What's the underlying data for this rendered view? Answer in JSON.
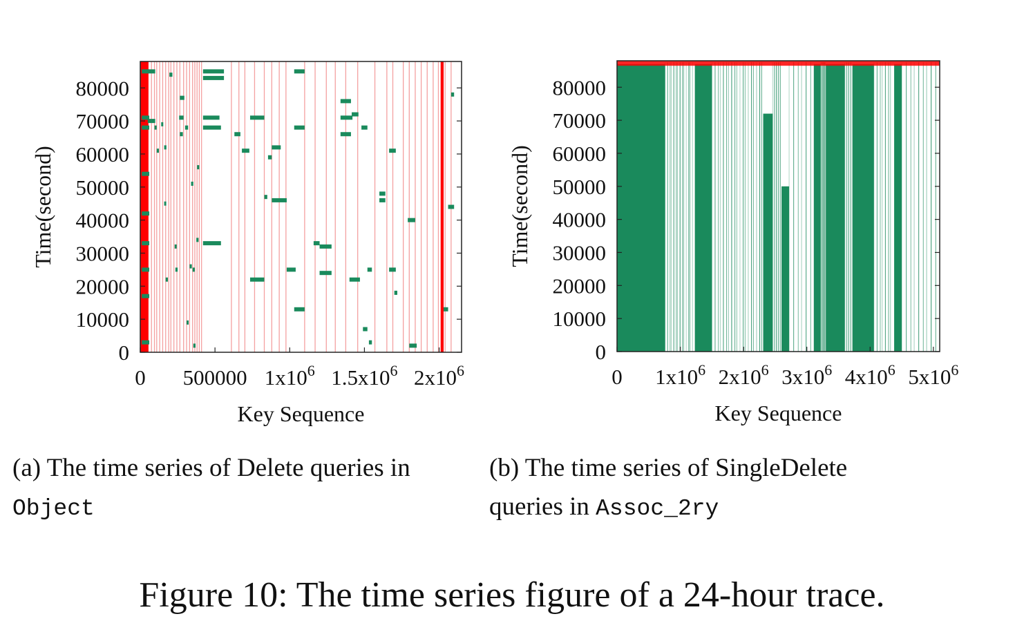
{
  "figure_caption": "Figure 10: The time series figure of a 24-hour trace.",
  "colors": {
    "red": "#ff0000",
    "light_red": "#f4a0a0",
    "green": "#1a8a5c",
    "axis": "#222222"
  },
  "chart_data": [
    {
      "id": "a",
      "type": "scatter",
      "caption_prefix": "(a)",
      "caption_text": "The time series of Delete queries in",
      "caption_mono": "Object",
      "xlabel": "Key Sequence",
      "ylabel": "Time(second)",
      "xlim": [
        0,
        2150000
      ],
      "ylim": [
        0,
        88000
      ],
      "xticks": [
        {
          "v": 0,
          "base": "0",
          "exp": ""
        },
        {
          "v": 500000,
          "base": "500000",
          "exp": ""
        },
        {
          "v": 1000000,
          "base": "1x10",
          "exp": "6"
        },
        {
          "v": 1500000,
          "base": "1.5x10",
          "exp": "6"
        },
        {
          "v": 2000000,
          "base": "2x10",
          "exp": "6"
        }
      ],
      "yticks": [
        0,
        10000,
        20000,
        30000,
        40000,
        50000,
        60000,
        70000,
        80000
      ],
      "red_bands": [
        [
          0,
          55000
        ],
        [
          2010000,
          2030000
        ]
      ],
      "red_lines": [
        75000,
        95000,
        110000,
        130000,
        150000,
        170000,
        190000,
        205000,
        225000,
        245000,
        265000,
        290000,
        310000,
        330000,
        350000,
        365000,
        380000,
        395000,
        410000,
        610000,
        660000,
        700000,
        765000,
        830000,
        880000,
        930000,
        975000,
        1100000,
        1170000,
        1245000,
        1305000,
        1375000,
        1455000,
        1570000,
        1650000,
        1690000,
        1760000,
        1800000,
        1840000,
        1880000,
        1920000,
        1960000,
        1995000,
        2040000,
        2080000
      ],
      "green_segments": [
        [
          10000,
          60000,
          85000
        ],
        [
          10000,
          60000,
          71000
        ],
        [
          10000,
          60000,
          68000
        ],
        [
          10000,
          60000,
          54000
        ],
        [
          10000,
          60000,
          42000
        ],
        [
          10000,
          60000,
          33000
        ],
        [
          10000,
          60000,
          25000
        ],
        [
          10000,
          60000,
          17000
        ],
        [
          10000,
          60000,
          3000
        ],
        [
          50000,
          100000,
          85000
        ],
        [
          50000,
          100000,
          70000
        ],
        [
          95000,
          110000,
          68000
        ],
        [
          110000,
          125000,
          61000
        ],
        [
          140000,
          150000,
          69000
        ],
        [
          160000,
          175000,
          62000
        ],
        [
          160000,
          170000,
          45000
        ],
        [
          170000,
          185000,
          22000
        ],
        [
          195000,
          215000,
          84000
        ],
        [
          230000,
          240000,
          32000
        ],
        [
          235000,
          250000,
          25000
        ],
        [
          265000,
          295000,
          77000
        ],
        [
          260000,
          290000,
          71000
        ],
        [
          265000,
          285000,
          66000
        ],
        [
          300000,
          320000,
          68000
        ],
        [
          310000,
          320000,
          9000
        ],
        [
          330000,
          345000,
          26000
        ],
        [
          340000,
          355000,
          51000
        ],
        [
          350000,
          365000,
          25000
        ],
        [
          355000,
          370000,
          2000
        ],
        [
          375000,
          390000,
          34000
        ],
        [
          380000,
          395000,
          56000
        ],
        [
          420000,
          560000,
          85000
        ],
        [
          420000,
          560000,
          83000
        ],
        [
          420000,
          530000,
          71000
        ],
        [
          420000,
          540000,
          68000
        ],
        [
          420000,
          540000,
          33000
        ],
        [
          630000,
          670000,
          66000
        ],
        [
          680000,
          730000,
          61000
        ],
        [
          735000,
          830000,
          71000
        ],
        [
          735000,
          830000,
          22000
        ],
        [
          830000,
          850000,
          47000
        ],
        [
          855000,
          880000,
          59000
        ],
        [
          880000,
          940000,
          62000
        ],
        [
          880000,
          980000,
          46000
        ],
        [
          980000,
          1040000,
          25000
        ],
        [
          1030000,
          1100000,
          85000
        ],
        [
          1030000,
          1100000,
          68000
        ],
        [
          1030000,
          1100000,
          13000
        ],
        [
          1160000,
          1200000,
          33000
        ],
        [
          1200000,
          1280000,
          32000
        ],
        [
          1200000,
          1280000,
          24000
        ],
        [
          1340000,
          1410000,
          76000
        ],
        [
          1340000,
          1420000,
          71000
        ],
        [
          1340000,
          1410000,
          66000
        ],
        [
          1415000,
          1460000,
          72000
        ],
        [
          1400000,
          1470000,
          22000
        ],
        [
          1480000,
          1520000,
          68000
        ],
        [
          1490000,
          1520000,
          7000
        ],
        [
          1520000,
          1550000,
          25000
        ],
        [
          1530000,
          1550000,
          3000
        ],
        [
          1600000,
          1640000,
          48000
        ],
        [
          1600000,
          1640000,
          46000
        ],
        [
          1665000,
          1710000,
          61000
        ],
        [
          1665000,
          1710000,
          25000
        ],
        [
          1700000,
          1720000,
          18000
        ],
        [
          1790000,
          1840000,
          40000
        ],
        [
          1800000,
          1850000,
          2000
        ],
        [
          2060000,
          2100000,
          44000
        ],
        [
          2080000,
          2100000,
          78000
        ],
        [
          2030000,
          2060000,
          13000
        ]
      ]
    },
    {
      "id": "b",
      "type": "scatter",
      "caption_prefix": "(b)",
      "caption_text": "The time series of SingleDelete",
      "caption_line2": "queries in",
      "caption_mono": "Assoc_2ry",
      "xlabel": "Key Sequence",
      "ylabel": "Time(second)",
      "xlim": [
        0,
        5100000
      ],
      "ylim": [
        0,
        88000
      ],
      "xticks": [
        {
          "v": 0,
          "base": "0",
          "exp": ""
        },
        {
          "v": 1000000,
          "base": "1x10",
          "exp": "6"
        },
        {
          "v": 2000000,
          "base": "2x10",
          "exp": "6"
        },
        {
          "v": 3000000,
          "base": "3x10",
          "exp": "6"
        },
        {
          "v": 4000000,
          "base": "4x10",
          "exp": "6"
        },
        {
          "v": 5000000,
          "base": "5x10",
          "exp": "6"
        }
      ],
      "yticks": [
        0,
        10000,
        20000,
        30000,
        40000,
        50000,
        60000,
        70000,
        80000
      ],
      "dense_blocks": [
        [
          0,
          760000,
          0,
          87000
        ],
        [
          1230000,
          1500000,
          0,
          87000
        ],
        [
          2310000,
          2460000,
          0,
          72000
        ],
        [
          2600000,
          2720000,
          0,
          50000
        ],
        [
          3110000,
          3220000,
          0,
          87000
        ],
        [
          3300000,
          3600000,
          0,
          87000
        ],
        [
          3720000,
          4060000,
          0,
          87000
        ],
        [
          4380000,
          4500000,
          0,
          87000
        ]
      ],
      "stripe_regions": [
        [
          760000,
          1230000,
          3
        ],
        [
          1500000,
          2310000,
          4
        ],
        [
          2460000,
          2600000,
          2
        ],
        [
          2720000,
          3110000,
          6
        ],
        [
          3220000,
          3300000,
          1
        ],
        [
          3600000,
          3720000,
          2
        ],
        [
          4060000,
          4380000,
          4
        ],
        [
          4500000,
          5100000,
          6
        ]
      ],
      "red_top_band": [
        0,
        5100000,
        86500,
        88000
      ]
    }
  ]
}
